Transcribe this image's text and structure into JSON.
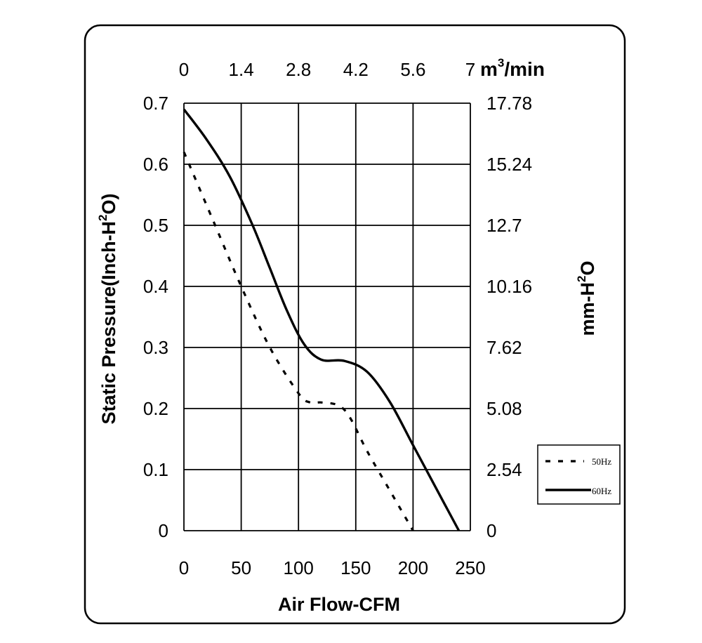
{
  "chart_data": {
    "type": "line",
    "xlabel": "Air Flow-CFM",
    "ylabel": "Static Pressure(Inch-H2O)",
    "ylabel_parts": [
      "Static Pressure(Inch-H",
      "2",
      "O)"
    ],
    "x_top_unit_parts": [
      "m",
      "3",
      "/min"
    ],
    "y_right_label_parts": [
      "mm-H",
      "2",
      "O"
    ],
    "xlim": [
      0,
      250
    ],
    "ylim": [
      0,
      0.7
    ],
    "x_ticks": [
      "0",
      "50",
      "100",
      "150",
      "200",
      "250"
    ],
    "y_ticks": [
      "0",
      "0.1",
      "0.2",
      "0.3",
      "0.4",
      "0.5",
      "0.6",
      "0.7"
    ],
    "x_top_ticks": [
      "0",
      "1.4",
      "2.8",
      "4.2",
      "5.6",
      "7"
    ],
    "y_right_ticks": [
      "0",
      "2.54",
      "5.08",
      "7.62",
      "10.16",
      "12.7",
      "15.24",
      "17.78"
    ],
    "grid": true,
    "legend_position": "right",
    "series": [
      {
        "name": "50Hz",
        "style": "dashed",
        "x": [
          0,
          25,
          50,
          75,
          100,
          110,
          120,
          135,
          145,
          160,
          180,
          200
        ],
        "y": [
          0.62,
          0.51,
          0.4,
          0.3,
          0.225,
          0.21,
          0.21,
          0.205,
          0.185,
          0.13,
          0.065,
          0
        ]
      },
      {
        "name": "60Hz",
        "style": "solid",
        "x": [
          0,
          20,
          40,
          60,
          75,
          90,
          105,
          120,
          140,
          160,
          180,
          200,
          220,
          240
        ],
        "y": [
          0.69,
          0.64,
          0.58,
          0.5,
          0.43,
          0.36,
          0.305,
          0.28,
          0.278,
          0.26,
          0.21,
          0.14,
          0.07,
          0
        ]
      }
    ]
  }
}
